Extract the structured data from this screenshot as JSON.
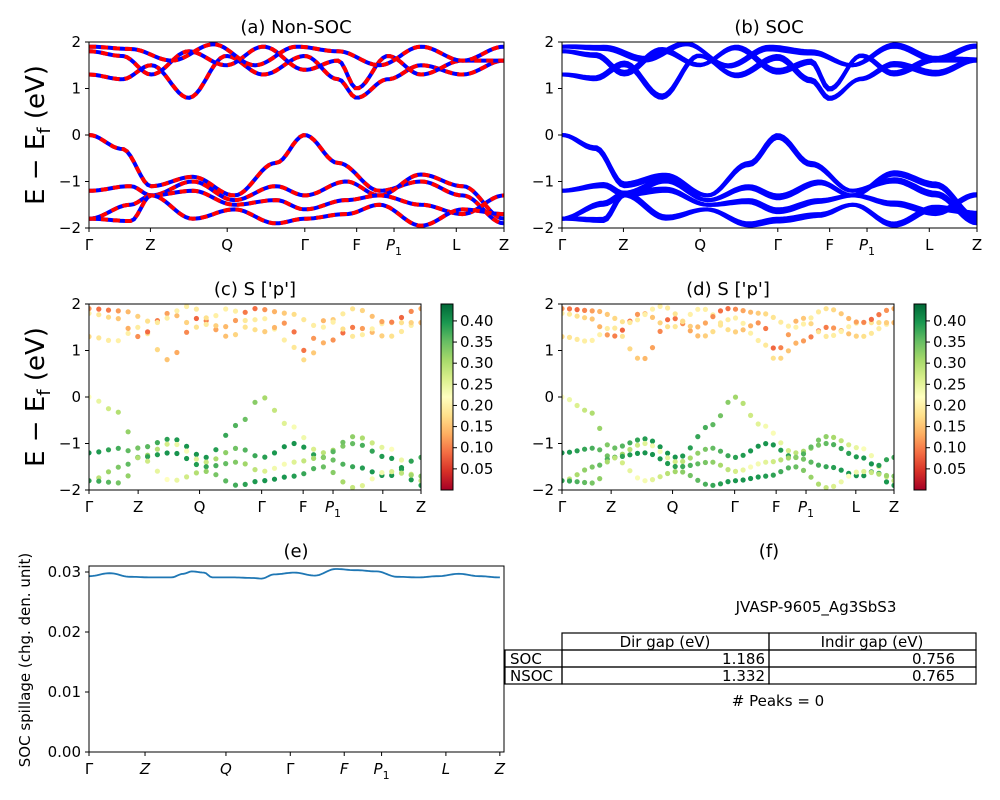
{
  "ylabel_energy": "E − E",
  "ylabel_energy_sub": "f",
  "ylabel_energy_unit": " (eV)",
  "kpath": [
    "Γ",
    "Z",
    "Q",
    "Γ",
    "F",
    "P",
    "L",
    "Z"
  ],
  "kpath_p_sub": "1",
  "chart_data": [
    {
      "type": "line",
      "panel": "a",
      "title": "(a) Non-SOC",
      "ylim": [
        -2,
        2
      ],
      "yticks": [
        "2",
        "1",
        "0",
        "−1",
        "−2"
      ],
      "xlim": [
        0,
        1
      ],
      "xtick_positions": [
        0.0,
        0.148,
        0.333,
        0.52,
        0.645,
        0.735,
        0.885,
        1.0
      ],
      "series": [
        {
          "role": "valence-top",
          "x": [
            0,
            0.05,
            0.1,
            0.15,
            0.2,
            0.3,
            0.4,
            0.46,
            0.52,
            0.58,
            0.63,
            0.7,
            0.8,
            0.9,
            1.0
          ],
          "y": [
            0,
            -0.2,
            -0.7,
            -1.2,
            -1.0,
            -1.15,
            -0.85,
            -0.3,
            0.0,
            -0.4,
            -1.0,
            -1.2,
            -1.0,
            -1.3,
            -1.9
          ]
        },
        {
          "role": "conduction-low",
          "x": [
            0,
            0.05,
            0.1,
            0.15,
            0.2,
            0.3,
            0.4,
            0.52,
            0.6,
            0.645,
            0.7,
            0.8,
            0.9,
            1.0
          ],
          "y": [
            1.3,
            1.2,
            0.9,
            1.3,
            0.8,
            1.6,
            1.4,
            1.7,
            1.2,
            0.8,
            1.1,
            1.5,
            1.2,
            1.6
          ]
        }
      ],
      "colors": {
        "line_a": "#ff0000",
        "line_b": "#0000ff"
      }
    },
    {
      "type": "line",
      "panel": "b",
      "title": "(b) SOC",
      "ylim": [
        -2,
        2
      ],
      "yticks": [
        "2",
        "1",
        "0",
        "−1",
        "−2"
      ],
      "xlim": [
        0,
        1
      ],
      "xtick_positions": [
        0.0,
        0.148,
        0.333,
        0.52,
        0.645,
        0.735,
        0.885,
        1.0
      ],
      "colors": {
        "line": "#0000ff"
      }
    },
    {
      "type": "scatter",
      "panel": "c",
      "title": "(c)  S ['p']",
      "ylim": [
        -2,
        2
      ],
      "yticks": [
        "2",
        "1",
        "0",
        "−1",
        "−2"
      ],
      "colorbar": {
        "min": 0.0,
        "max": 0.44,
        "ticks": [
          "0.40",
          "0.35",
          "0.30",
          "0.25",
          "0.20",
          "0.15",
          "0.10",
          "0.05"
        ],
        "tick_values": [
          0.4,
          0.35,
          0.3,
          0.25,
          0.2,
          0.15,
          0.1,
          0.05
        ],
        "cmap": "RdYlGn"
      }
    },
    {
      "type": "scatter",
      "panel": "d",
      "title": "(d) S ['p']",
      "ylim": [
        -2,
        2
      ],
      "yticks": [
        "2",
        "1",
        "0",
        "−1",
        "−2"
      ],
      "colorbar": {
        "min": 0.0,
        "max": 0.44,
        "ticks": [
          "0.40",
          "0.35",
          "0.30",
          "0.25",
          "0.20",
          "0.15",
          "0.10",
          "0.05"
        ],
        "tick_values": [
          0.4,
          0.35,
          0.3,
          0.25,
          0.2,
          0.15,
          0.1,
          0.05
        ],
        "cmap": "RdYlGn"
      }
    },
    {
      "type": "line",
      "panel": "e",
      "title": "(e)",
      "ylabel": "SOC spillage (chg. den. unit)",
      "ylim": [
        0.0,
        0.031
      ],
      "yticks": [
        "0.03",
        "0.02",
        "0.01",
        "0.00"
      ],
      "ytick_values": [
        0.03,
        0.02,
        0.01,
        0.0
      ],
      "x": [
        0,
        0.05,
        0.1,
        0.15,
        0.2,
        0.23,
        0.25,
        0.28,
        0.3,
        0.35,
        0.4,
        0.42,
        0.45,
        0.5,
        0.55,
        0.6,
        0.65,
        0.7,
        0.75,
        0.8,
        0.85,
        0.9,
        0.95,
        1.0
      ],
      "y": [
        0.0293,
        0.0298,
        0.0292,
        0.0291,
        0.0291,
        0.0297,
        0.0301,
        0.0299,
        0.0291,
        0.0291,
        0.029,
        0.0289,
        0.0296,
        0.0299,
        0.0294,
        0.0305,
        0.0303,
        0.0301,
        0.0292,
        0.0291,
        0.0293,
        0.0297,
        0.0293,
        0.0291
      ],
      "colors": {
        "line": "#1f77b4"
      }
    }
  ],
  "panel_f": {
    "title": "(f)",
    "material": "JVASP-9605_Ag3SbS3",
    "table": {
      "columns": [
        "Dir gap (eV)",
        "Indir gap (eV)"
      ],
      "rows": [
        {
          "label": "SOC",
          "dir": "1.186",
          "indir": "0.756"
        },
        {
          "label": "NSOC",
          "dir": "1.332",
          "indir": "0.765"
        }
      ]
    },
    "peaks": "# Peaks = 0"
  }
}
